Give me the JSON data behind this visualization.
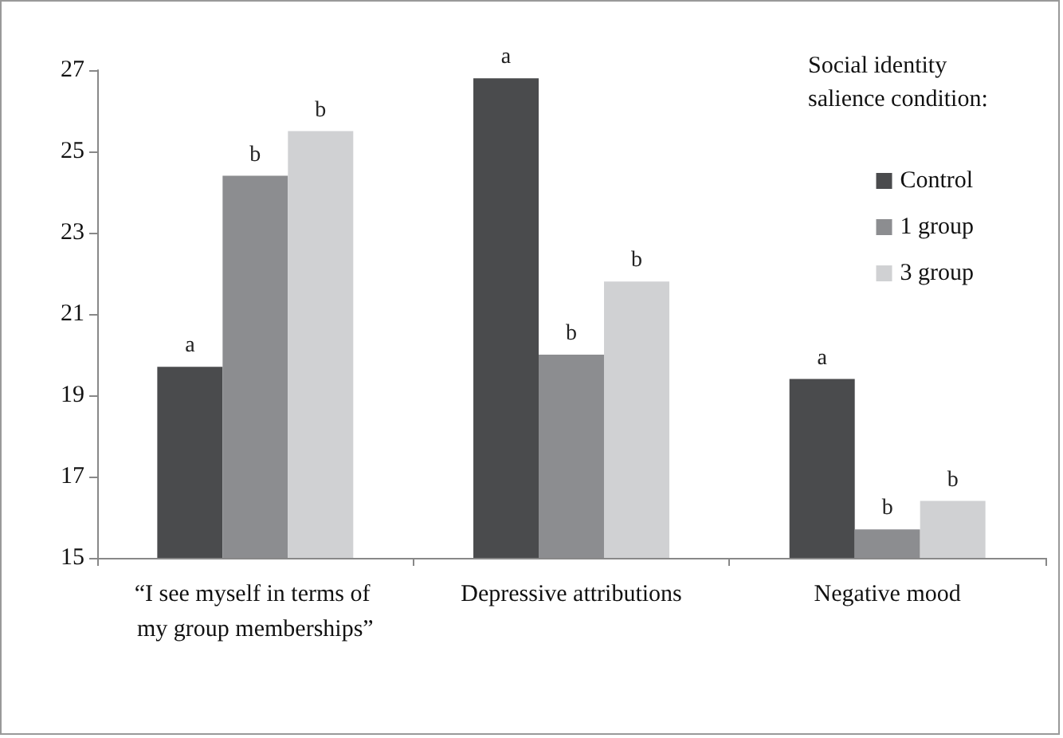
{
  "chart_data": {
    "type": "bar",
    "categories": [
      "“I see myself in terms of my group memberships”",
      "Depressive attributions",
      "Negative mood"
    ],
    "series": [
      {
        "name": "Control",
        "color": "#4a4b4d",
        "values": [
          19.7,
          26.8,
          19.4
        ],
        "value_labels": [
          "a",
          "a",
          "a"
        ]
      },
      {
        "name": "1 group",
        "color": "#8c8d90",
        "values": [
          24.4,
          20.0,
          15.7
        ],
        "value_labels": [
          "b",
          "b",
          "b"
        ]
      },
      {
        "name": "3 group",
        "color": "#d0d1d3",
        "values": [
          25.5,
          21.8,
          16.4
        ],
        "value_labels": [
          "b",
          "b",
          "b"
        ]
      }
    ],
    "legend_title": "Social identity salience condition:",
    "legend": "top right",
    "ylim": [
      15,
      27
    ],
    "yticks": [
      15,
      17,
      19,
      21,
      23,
      25,
      27
    ],
    "grid": false
  }
}
